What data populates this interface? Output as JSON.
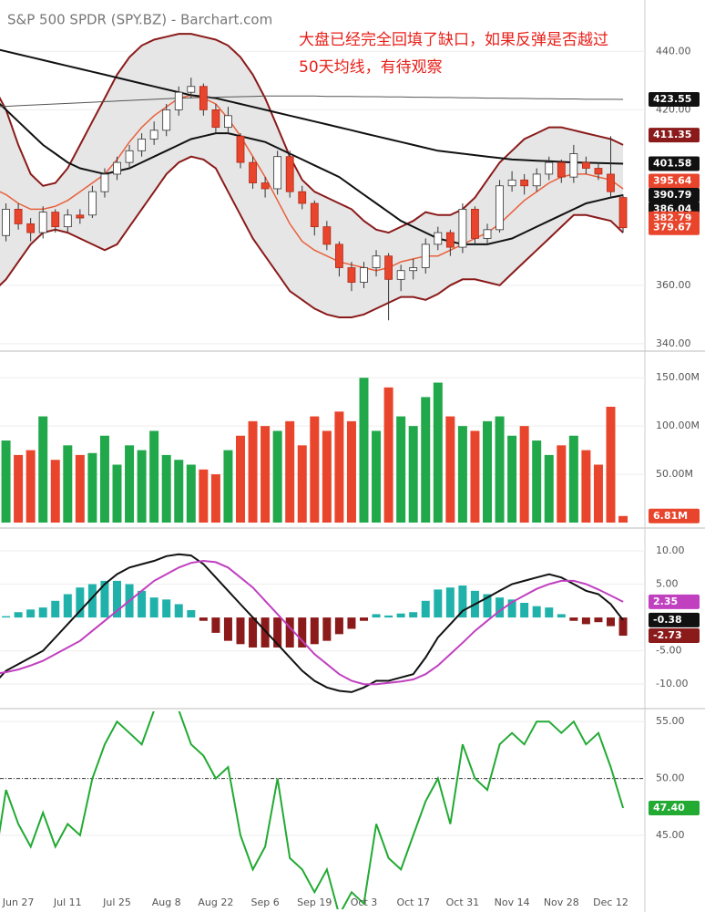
{
  "title": "S&P 500 SPDR (SPY.BZ) - Barchart.com",
  "annotation": [
    "大盘已经完全回填了缺口，如果反弹是否越过",
    "50天均线，有待观察"
  ],
  "chart_data": [
    {
      "type": "candlestick",
      "categories": [
        null,
        null,
        "Jun 27",
        null,
        null,
        null,
        "Jul 11",
        null,
        null,
        null,
        "Jul 25",
        null,
        null,
        null,
        "Aug 8",
        null,
        null,
        null,
        "Aug 22",
        null,
        null,
        null,
        "Sep 6",
        null,
        null,
        null,
        "Sep 19",
        null,
        null,
        null,
        "Oct 3",
        null,
        null,
        null,
        "Oct 17",
        null,
        null,
        null,
        "Oct 31",
        null,
        null,
        null,
        "Nov 14",
        null,
        null,
        null,
        "Nov 28",
        null,
        null,
        null,
        "Dec 12",
        null
      ],
      "open": [
        372,
        377,
        386,
        381,
        378,
        385,
        380,
        384,
        384,
        392,
        398,
        402,
        406,
        410,
        413,
        420,
        426,
        428,
        420,
        414,
        411,
        402,
        395,
        393,
        404,
        392,
        388,
        380,
        374,
        366,
        361,
        366,
        370,
        362,
        365,
        366,
        374,
        378,
        373,
        386,
        376,
        379,
        394,
        396,
        394,
        398,
        402,
        397,
        402,
        400,
        398,
        390
      ],
      "high": [
        378,
        388,
        388,
        383,
        387,
        386,
        386,
        386,
        394,
        400,
        404,
        408,
        412,
        416,
        422,
        428,
        431,
        429,
        422,
        421,
        412,
        404,
        397,
        406,
        406,
        394,
        389,
        382,
        375,
        368,
        368,
        372,
        371,
        367,
        369,
        376,
        380,
        379,
        388,
        387,
        381,
        396,
        399,
        398,
        400,
        404,
        403,
        408,
        404,
        402,
        411,
        391
      ],
      "low": [
        370,
        375,
        379,
        375,
        376,
        378,
        378,
        381,
        383,
        390,
        396,
        400,
        404,
        408,
        411,
        418,
        424,
        418,
        412,
        412,
        400,
        393,
        390,
        391,
        390,
        386,
        377,
        372,
        363,
        358,
        359,
        363,
        348,
        358,
        362,
        364,
        372,
        370,
        371,
        374,
        374,
        378,
        392,
        391,
        392,
        396,
        395,
        395,
        398,
        396,
        390,
        378
      ],
      "close": [
        376,
        386,
        381,
        378,
        385,
        380,
        384,
        383,
        392,
        398,
        402,
        406,
        410,
        413,
        420,
        426,
        428,
        420,
        414,
        418,
        402,
        395,
        393,
        404,
        392,
        388,
        380,
        374,
        366,
        361,
        366,
        370,
        362,
        365,
        366,
        374,
        378,
        373,
        386,
        376,
        379,
        394,
        396,
        394,
        398,
        402,
        397,
        405,
        400,
        398,
        392,
        379.67
      ],
      "up_color": "#ffffff",
      "down_color": "#e8452c",
      "band_color": "#e6e6e6",
      "series": [
        {
          "color": "#8b1a1a",
          "values": [
            428,
            420,
            408,
            398,
            394,
            395,
            400,
            408,
            416,
            424,
            432,
            438,
            442,
            444,
            445,
            446,
            446,
            445,
            444,
            442,
            438,
            432,
            424,
            414,
            404,
            396,
            392,
            390,
            388,
            386,
            382,
            379,
            378,
            380,
            382,
            385,
            384,
            384,
            386,
            390,
            396,
            402,
            406,
            410,
            412,
            414,
            414,
            413,
            412,
            411,
            410,
            408
          ]
        },
        {
          "color": "#8b1a1a",
          "values": [
            358,
            362,
            368,
            374,
            378,
            379,
            378,
            376,
            374,
            372,
            374,
            380,
            386,
            392,
            398,
            402,
            404,
            403,
            400,
            392,
            384,
            376,
            370,
            364,
            358,
            355,
            352,
            350,
            349,
            349,
            350,
            352,
            354,
            356,
            356,
            355,
            357,
            360,
            362,
            362,
            361,
            360,
            364,
            368,
            372,
            376,
            380,
            384,
            384,
            383,
            382,
            378
          ]
        },
        {
          "color": "#e8603c",
          "values": [
            393,
            391,
            388,
            386,
            386,
            387,
            389,
            392,
            395,
            398,
            403,
            409,
            414,
            418,
            421,
            424,
            425,
            424,
            422,
            417,
            411,
            404,
            397,
            389,
            381,
            375,
            372,
            370,
            368,
            367,
            366,
            365,
            366,
            368,
            369,
            370,
            370,
            372,
            374,
            376,
            378,
            381,
            385,
            389,
            392,
            395,
            397,
            398,
            398,
            397,
            396,
            393
          ]
        },
        {
          "color": "#111111",
          "values": [
            424,
            420,
            416,
            412,
            408,
            405,
            402,
            400,
            399,
            398,
            399,
            400,
            402,
            404,
            406,
            408,
            410,
            411,
            412,
            412,
            411,
            410,
            409,
            407,
            405,
            403,
            401,
            399,
            397,
            394,
            391,
            388,
            385,
            382,
            380,
            378,
            376,
            375,
            374,
            374,
            374,
            375,
            376,
            378,
            380,
            382,
            384,
            386,
            388,
            389,
            390,
            390.79
          ]
        },
        {
          "color": "#111111",
          "values": [
            441,
            440,
            439,
            438,
            437,
            436,
            435,
            434,
            433,
            432,
            431,
            430,
            429,
            428,
            427,
            426,
            425,
            424.5,
            424,
            423,
            422,
            421,
            420,
            419,
            418,
            417,
            416,
            415,
            414,
            413,
            412,
            411,
            410,
            409,
            408,
            407,
            406,
            405.5,
            405,
            404.5,
            404,
            403.5,
            403,
            402.8,
            402.6,
            402.4,
            402.2,
            402,
            401.9,
            401.8,
            401.7,
            401.58
          ]
        },
        {
          "color": "#555555",
          "values": [
            421,
            421.2,
            421.4,
            421.6,
            421.8,
            422,
            422.2,
            422.4,
            422.6,
            422.8,
            423,
            423.2,
            423.4,
            423.6,
            423.8,
            424,
            424.1,
            424.2,
            424.3,
            424.4,
            424.5,
            424.6,
            424.7,
            424.7,
            424.7,
            424.7,
            424.7,
            424.6,
            424.6,
            424.6,
            424.5,
            424.5,
            424.4,
            424.4,
            424.3,
            424.3,
            424.2,
            424.2,
            424.1,
            424.1,
            424,
            424,
            423.9,
            423.9,
            423.8,
            423.8,
            423.7,
            423.7,
            423.6,
            423.6,
            423.6,
            423.55
          ]
        }
      ],
      "ylim": [
        338.4,
        456
      ],
      "yticks": [
        {
          "value": 340,
          "label": "340.00"
        },
        {
          "value": 360,
          "label": "360.00"
        },
        {
          "value": 420,
          "label": "420.00"
        },
        {
          "value": 440,
          "label": "440.00"
        }
      ],
      "badges": {
        "values": [
          423.55,
          411.35,
          401.58,
          395.64,
          386.04,
          382.79,
          390.79,
          379.67
        ],
        "colors": [
          "#111111",
          "#8b1a1a",
          "#111111",
          "#e8452c",
          "#111111",
          "#e8452c",
          "#111111",
          "#e8452c"
        ]
      }
    },
    {
      "type": "bar",
      "values": [
        90,
        85,
        70,
        75,
        110,
        65,
        80,
        70,
        72,
        90,
        60,
        80,
        75,
        95,
        70,
        65,
        60,
        55,
        50,
        75,
        90,
        105,
        100,
        95,
        105,
        80,
        110,
        95,
        115,
        105,
        150,
        95,
        140,
        110,
        100,
        130,
        145,
        110,
        100,
        95,
        105,
        110,
        90,
        100,
        85,
        70,
        80,
        90,
        75,
        60,
        120,
        6.81
      ],
      "up_color": "#21a84a",
      "down_color": "#e8452c",
      "ylim": [
        0,
        171
      ],
      "yticks": [
        {
          "value": 50,
          "label": "50.00M"
        },
        {
          "value": 100,
          "label": "100.00M"
        },
        {
          "value": 150,
          "label": "150.00M"
        }
      ],
      "badges": {
        "values": [
          6.81
        ],
        "value_labels": [
          "6.81M"
        ],
        "colors": [
          "#e8452c"
        ]
      }
    },
    {
      "type": "macd",
      "histogram": [
        -1.5,
        0.2,
        0.8,
        1.2,
        1.5,
        2.5,
        3.5,
        4.5,
        5,
        5.5,
        5.5,
        5,
        4,
        3,
        2.7,
        2,
        1.1,
        -0.5,
        -2.3,
        -3.5,
        -4,
        -4.5,
        -4.5,
        -4.5,
        -4.5,
        -4.5,
        -4,
        -3.5,
        -2.5,
        -1.7,
        -0.5,
        0.5,
        0.3,
        0.6,
        0.8,
        2.5,
        4.2,
        4.5,
        4.8,
        4,
        3.5,
        3,
        2.7,
        2.2,
        1.7,
        1.5,
        0.5,
        -0.5,
        -1,
        -0.7,
        -1.3,
        -2.73
      ],
      "pos_color": "#20b2aa",
      "neg_color": "#8b1a1a",
      "series": [
        {
          "color": "#111111",
          "values": [
            -10,
            -8,
            -7,
            -6,
            -5,
            -3,
            -1,
            1,
            3,
            5,
            6.5,
            7.5,
            8,
            8.5,
            9.2,
            9.5,
            9.3,
            8,
            6,
            4,
            2,
            0,
            -2,
            -4,
            -6,
            -8,
            -9.5,
            -10.5,
            -11,
            -11.2,
            -10.5,
            -9.5,
            -9.5,
            -9,
            -8.5,
            -6,
            -3,
            -1,
            1,
            2,
            3,
            4,
            5,
            5.5,
            6,
            6.5,
            6,
            5,
            4,
            3.5,
            2,
            -0.38
          ]
        },
        {
          "color": "#c040c0",
          "values": [
            -8.5,
            -8.2,
            -7.8,
            -7.2,
            -6.5,
            -5.5,
            -4.5,
            -3.5,
            -2,
            -0.5,
            1,
            2.5,
            4,
            5.5,
            6.5,
            7.5,
            8.2,
            8.5,
            8.3,
            7.5,
            6,
            4.5,
            2.5,
            0.5,
            -1.5,
            -3.5,
            -5.5,
            -7,
            -8.5,
            -9.5,
            -10,
            -10,
            -9.8,
            -9.6,
            -9.3,
            -8.5,
            -7.2,
            -5.5,
            -3.8,
            -2,
            -0.5,
            1,
            2.3,
            3.3,
            4.3,
            5,
            5.5,
            5.5,
            5,
            4.2,
            3.3,
            2.35
          ]
        }
      ],
      "ylim": [
        -13.4,
        12.6
      ],
      "yticks": [
        {
          "value": -10,
          "label": "-10.00"
        },
        {
          "value": -5,
          "label": "-5.00"
        },
        {
          "value": 5,
          "label": "5.00"
        },
        {
          "value": 10,
          "label": "10.00"
        }
      ],
      "badges": {
        "values": [
          2.35,
          -0.38,
          -2.73
        ],
        "colors": [
          "#c040c0",
          "#111111",
          "#8b1a1a"
        ]
      }
    },
    {
      "type": "line",
      "series": [
        {
          "color": "#22aa33",
          "values": [
            42,
            49,
            46,
            44,
            47,
            44,
            46,
            45,
            50,
            53,
            55,
            54,
            53,
            56,
            57,
            56,
            53,
            52,
            50,
            51,
            45,
            42,
            44,
            50,
            43,
            42,
            40,
            42,
            38,
            40,
            39,
            46,
            43,
            42,
            45,
            48,
            50,
            46,
            53,
            50,
            49,
            53,
            54,
            53,
            55,
            55,
            54,
            55,
            53,
            54,
            51,
            47.4
          ]
        }
      ],
      "reference_line": 50,
      "ylim": [
        38.5,
        55.9
      ],
      "yticks": [
        {
          "value": 45,
          "label": "45.00"
        },
        {
          "value": 50,
          "label": "50.00"
        },
        {
          "value": 55,
          "label": "55.00"
        }
      ],
      "badges": {
        "values": [
          47.4
        ],
        "value_labels": [
          "47.40"
        ],
        "colors": [
          "#22aa33"
        ]
      }
    }
  ]
}
